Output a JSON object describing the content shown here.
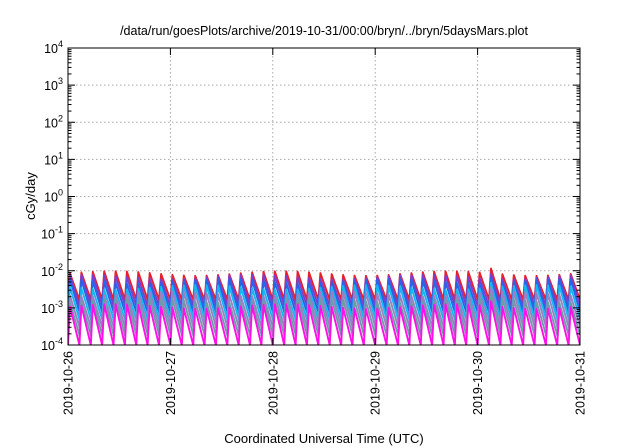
{
  "chart_data": {
    "type": "line",
    "title": "/data/run/goesPlots/archive/2019-10-31/00:00/bryn/../bryn/5daysMars.plot",
    "xlabel": "Coordinated Universal Time (UTC)",
    "ylabel": "cGy/day",
    "y_scale": "log",
    "ylim": [
      0.0001,
      10000
    ],
    "y_ticks": [
      {
        "base": "10",
        "exp": "4"
      },
      {
        "base": "10",
        "exp": "3"
      },
      {
        "base": "10",
        "exp": "2"
      },
      {
        "base": "10",
        "exp": "1"
      },
      {
        "base": "10",
        "exp": "0"
      },
      {
        "base": "10",
        "exp": "-1"
      },
      {
        "base": "10",
        "exp": "-2"
      },
      {
        "base": "10",
        "exp": "-3"
      },
      {
        "base": "10",
        "exp": "-4"
      }
    ],
    "x_range": [
      "2019-10-26",
      "2019-10-31"
    ],
    "x_ticks": [
      "2019-10-26",
      "2019-10-27",
      "2019-10-28",
      "2019-10-29",
      "2019-10-30",
      "2019-10-31"
    ],
    "grid": true,
    "legend": "none",
    "sawtooth_cycles_per_day": 9,
    "series": [
      {
        "color": "#e8202c",
        "peak": 0.0085,
        "trough": 0.0016
      },
      {
        "color": "#7a3fd0",
        "peak": 0.0068,
        "trough": 0.0011
      },
      {
        "color": "#2466e8",
        "peak": 0.0052,
        "trough": 0.00075
      },
      {
        "color": "#14b7ef",
        "peak": 0.0036,
        "trough": 0.00048
      },
      {
        "color": "#9a7fc6",
        "peak": 0.0024,
        "trough": 0.0003
      },
      {
        "color": "#6e9ba8",
        "peak": 0.0016,
        "trough": 0.00018
      },
      {
        "color": "#ff10e8",
        "peak": 0.0011,
        "trough": 9.5e-05
      }
    ]
  }
}
